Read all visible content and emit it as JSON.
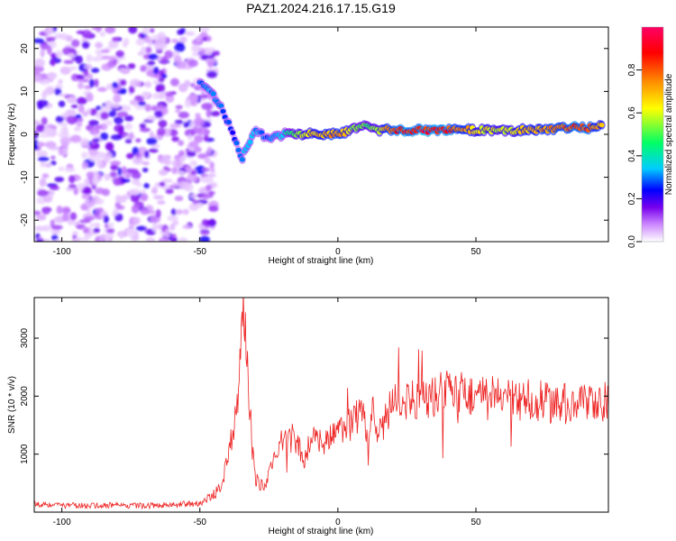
{
  "figure_title": "PAZ1.2024.216.17.15.G19",
  "chart_data": [
    {
      "type": "heatmap",
      "xlabel": "Height of straight line (km)",
      "ylabel": "Frequency (Hz)",
      "xlim": [
        -110,
        98
      ],
      "ylim": [
        -25,
        25
      ],
      "xticks": [
        -100,
        -50,
        0,
        50
      ],
      "yticks": [
        -20,
        -10,
        0,
        10,
        20
      ],
      "colorbar": {
        "label": "Normalized spectral amplitude",
        "range": [
          0.0,
          1.0
        ],
        "ticks": [
          "0.0",
          "0.2",
          "0.4",
          "0.6",
          "0.8"
        ],
        "colors": [
          "#ffffff",
          "#cc88ff",
          "#7700ee",
          "#0000ff",
          "#00ccff",
          "#00ff66",
          "#ffff00",
          "#ff8800",
          "#ff0000",
          "#ff0066"
        ]
      },
      "ridge": {
        "x": [
          -50,
          -45,
          -42,
          -40,
          -38,
          -35,
          -30,
          -25,
          -20,
          -15,
          -10,
          -5,
          0,
          5,
          10,
          15,
          20,
          30,
          40,
          50,
          60,
          70,
          80,
          90,
          96
        ],
        "y": [
          12,
          9,
          6,
          3,
          0,
          -6,
          1,
          -1,
          0,
          0,
          0,
          0,
          0,
          1,
          2,
          1,
          1,
          1,
          1,
          1,
          1,
          1,
          1.5,
          1.5,
          2
        ],
        "amplitude": [
          0.3,
          0.35,
          0.3,
          0.3,
          0.25,
          0.35,
          0.35,
          0.3,
          0.4,
          0.55,
          0.7,
          0.75,
          0.8,
          0.6,
          0.55,
          0.6,
          0.9,
          0.95,
          0.9,
          0.7,
          0.65,
          0.75,
          0.85,
          0.9,
          0.7
        ]
      },
      "noise_region_x": [
        -110,
        -50
      ]
    },
    {
      "type": "line",
      "xlabel": "Height of straight line (km)",
      "ylabel": "SNR (10 * v/v)",
      "xlim": [
        -110,
        98
      ],
      "ylim": [
        0,
        3700
      ],
      "xticks": [
        -100,
        -50,
        0,
        50
      ],
      "yticks": [
        1000,
        2000,
        3000
      ],
      "series": [
        {
          "color": "#ee2222",
          "x": [
            -110,
            -100,
            -90,
            -80,
            -70,
            -60,
            -50,
            -45,
            -42,
            -40,
            -38,
            -36,
            -35,
            -34,
            -33,
            -32,
            -31,
            -30,
            -28,
            -26,
            -24,
            -22,
            -20,
            -18,
            -16,
            -14,
            -12,
            -10,
            -8,
            -6,
            -4,
            -2,
            0,
            2,
            4,
            6,
            8,
            10,
            11,
            12,
            14,
            16,
            18,
            20,
            25,
            30,
            35,
            40,
            45,
            50,
            55,
            60,
            65,
            70,
            75,
            80,
            85,
            90,
            94,
            96,
            98
          ],
          "y": [
            150,
            120,
            110,
            120,
            110,
            130,
            150,
            300,
            500,
            900,
            1400,
            2200,
            2900,
            3600,
            2500,
            1900,
            1100,
            600,
            450,
            500,
            800,
            1100,
            1200,
            1300,
            1200,
            1100,
            900,
            1300,
            1200,
            1250,
            1200,
            1300,
            1400,
            1500,
            1550,
            1600,
            1650,
            1600,
            950,
            1800,
            1500,
            1400,
            1700,
            1900,
            1950,
            1900,
            2000,
            2100,
            2050,
            2000,
            2000,
            1950,
            1900,
            1950,
            1900,
            1850,
            1900,
            1850,
            1800,
            1900,
            1950
          ]
        }
      ]
    }
  ]
}
